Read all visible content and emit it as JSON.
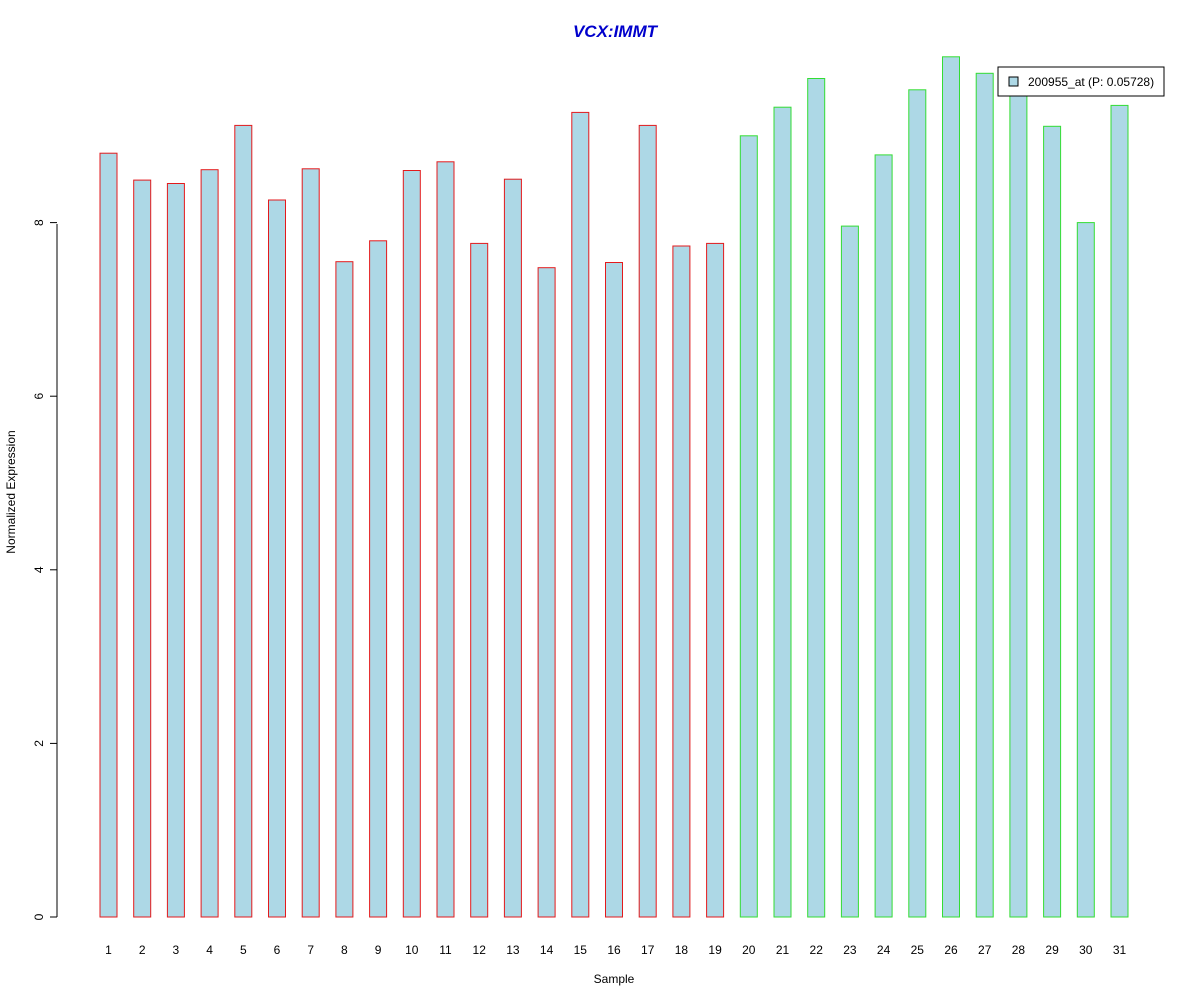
{
  "chart_data": {
    "type": "bar",
    "title": "VCX:IMMT",
    "xlabel": "Sample",
    "ylabel": "Normalized Expression",
    "categories": [
      "1",
      "2",
      "3",
      "4",
      "5",
      "6",
      "7",
      "8",
      "9",
      "10",
      "11",
      "12",
      "13",
      "14",
      "15",
      "16",
      "17",
      "18",
      "19",
      "20",
      "21",
      "22",
      "23",
      "24",
      "25",
      "26",
      "27",
      "28",
      "29",
      "30",
      "31"
    ],
    "series": [
      {
        "name": "200955_at (P: 0.05728)",
        "values": [
          8.8,
          8.49,
          8.45,
          8.61,
          9.12,
          8.26,
          8.62,
          7.55,
          7.79,
          8.6,
          8.7,
          7.76,
          8.5,
          7.48,
          9.27,
          7.54,
          9.12,
          7.73,
          7.76,
          9.0,
          9.33,
          9.66,
          7.96,
          8.78,
          9.53,
          9.91,
          9.72,
          9.56,
          9.11,
          8.0,
          9.35
        ]
      }
    ],
    "groups": [
      {
        "from": 1,
        "to": 19,
        "border_color": "#e31a1c"
      },
      {
        "from": 20,
        "to": 31,
        "border_color": "#33dd33"
      }
    ],
    "yticks": [
      0,
      2,
      4,
      6,
      8
    ],
    "ylim": [
      0,
      10
    ],
    "bar_fill": "#add8e6",
    "title_color": "#0000cc",
    "legend_position": "top-right",
    "grid": false
  }
}
